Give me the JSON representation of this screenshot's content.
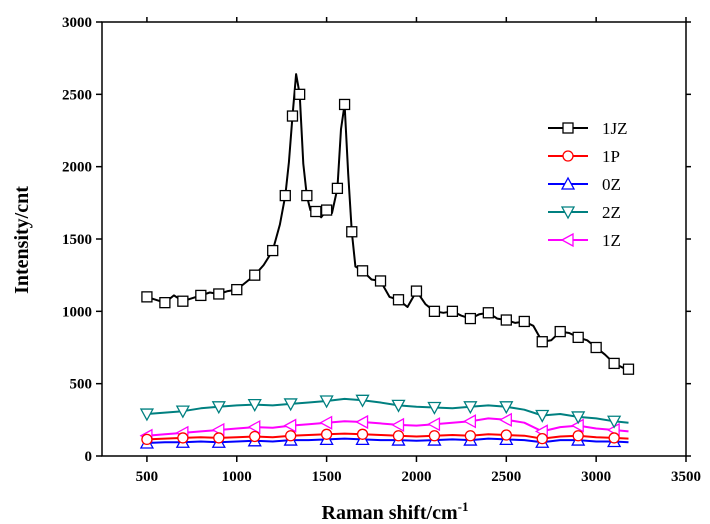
{
  "chart_data": {
    "type": "line",
    "xlabel": "Raman shift/cm",
    "xlabel_sup": "-1",
    "ylabel": "Intensity/cnt",
    "xlim": [
      250,
      3500
    ],
    "ylim": [
      0,
      3000
    ],
    "xticks": [
      500,
      1000,
      1500,
      2000,
      2500,
      3000,
      3500
    ],
    "yticks": [
      0,
      500,
      1000,
      1500,
      2000,
      2500,
      3000
    ],
    "legend_position": "right",
    "grid": false,
    "series": [
      {
        "name": "1JZ",
        "color": "#000000",
        "marker": "square",
        "x": [
          500,
          550,
          600,
          650,
          700,
          750,
          800,
          850,
          900,
          950,
          1000,
          1050,
          1100,
          1150,
          1200,
          1240,
          1270,
          1290,
          1310,
          1330,
          1350,
          1370,
          1390,
          1410,
          1440,
          1470,
          1500,
          1530,
          1560,
          1580,
          1600,
          1620,
          1640,
          1660,
          1700,
          1750,
          1800,
          1850,
          1900,
          1950,
          2000,
          2050,
          2100,
          2150,
          2200,
          2250,
          2300,
          2350,
          2400,
          2450,
          2500,
          2550,
          2600,
          2650,
          2700,
          2750,
          2800,
          2850,
          2900,
          2950,
          3000,
          3050,
          3100,
          3150,
          3180
        ],
        "y": [
          1100,
          1080,
          1060,
          1110,
          1070,
          1090,
          1110,
          1130,
          1120,
          1140,
          1150,
          1200,
          1250,
          1320,
          1420,
          1600,
          1800,
          2030,
          2350,
          2640,
          2500,
          2020,
          1800,
          1700,
          1690,
          1650,
          1700,
          1680,
          1850,
          2260,
          2430,
          1950,
          1550,
          1310,
          1280,
          1220,
          1210,
          1100,
          1080,
          1030,
          1140,
          1050,
          1000,
          990,
          1000,
          970,
          950,
          980,
          990,
          950,
          940,
          920,
          930,
          900,
          790,
          800,
          860,
          850,
          820,
          800,
          750,
          700,
          640,
          610,
          600
        ]
      },
      {
        "name": "1P",
        "color": "#ff0000",
        "marker": "circle",
        "x": [
          500,
          600,
          700,
          800,
          900,
          1000,
          1100,
          1200,
          1300,
          1400,
          1500,
          1600,
          1700,
          1800,
          1900,
          2000,
          2100,
          2200,
          2300,
          2400,
          2500,
          2600,
          2700,
          2800,
          2900,
          3000,
          3100,
          3180
        ],
        "y": [
          115,
          120,
          125,
          130,
          125,
          130,
          135,
          130,
          140,
          145,
          150,
          155,
          150,
          145,
          140,
          135,
          140,
          145,
          140,
          150,
          145,
          140,
          120,
          135,
          140,
          130,
          125,
          120
        ]
      },
      {
        "name": "0Z",
        "color": "#0000ff",
        "marker": "triangle-up",
        "x": [
          500,
          600,
          700,
          800,
          900,
          1000,
          1100,
          1200,
          1300,
          1400,
          1500,
          1600,
          1700,
          1800,
          1900,
          2000,
          2100,
          2200,
          2300,
          2400,
          2500,
          2600,
          2700,
          2800,
          2900,
          3000,
          3100,
          3180
        ],
        "y": [
          90,
          95,
          95,
          100,
          95,
          100,
          105,
          100,
          110,
          110,
          115,
          120,
          115,
          110,
          110,
          105,
          110,
          115,
          110,
          120,
          115,
          110,
          95,
          110,
          110,
          100,
          100,
          95
        ]
      },
      {
        "name": "2Z",
        "color": "#008080",
        "marker": "triangle-down",
        "x": [
          500,
          600,
          700,
          800,
          900,
          1000,
          1100,
          1200,
          1300,
          1400,
          1500,
          1600,
          1700,
          1800,
          1900,
          2000,
          2100,
          2200,
          2300,
          2400,
          2500,
          2600,
          2700,
          2800,
          2900,
          3000,
          3100,
          3180
        ],
        "y": [
          290,
          300,
          310,
          330,
          340,
          350,
          355,
          350,
          360,
          370,
          380,
          395,
          385,
          370,
          350,
          340,
          335,
          330,
          340,
          350,
          340,
          320,
          280,
          290,
          270,
          260,
          240,
          230
        ]
      },
      {
        "name": "1Z",
        "color": "#ff00ff",
        "marker": "triangle-left",
        "x": [
          500,
          600,
          700,
          800,
          900,
          1000,
          1100,
          1200,
          1300,
          1400,
          1500,
          1600,
          1700,
          1800,
          1900,
          2000,
          2100,
          2200,
          2300,
          2400,
          2500,
          2600,
          2700,
          2800,
          2900,
          3000,
          3100,
          3180
        ],
        "y": [
          140,
          150,
          160,
          170,
          180,
          190,
          200,
          195,
          210,
          220,
          230,
          240,
          235,
          225,
          215,
          210,
          220,
          230,
          240,
          260,
          250,
          230,
          170,
          200,
          210,
          190,
          180,
          170
        ]
      }
    ]
  }
}
